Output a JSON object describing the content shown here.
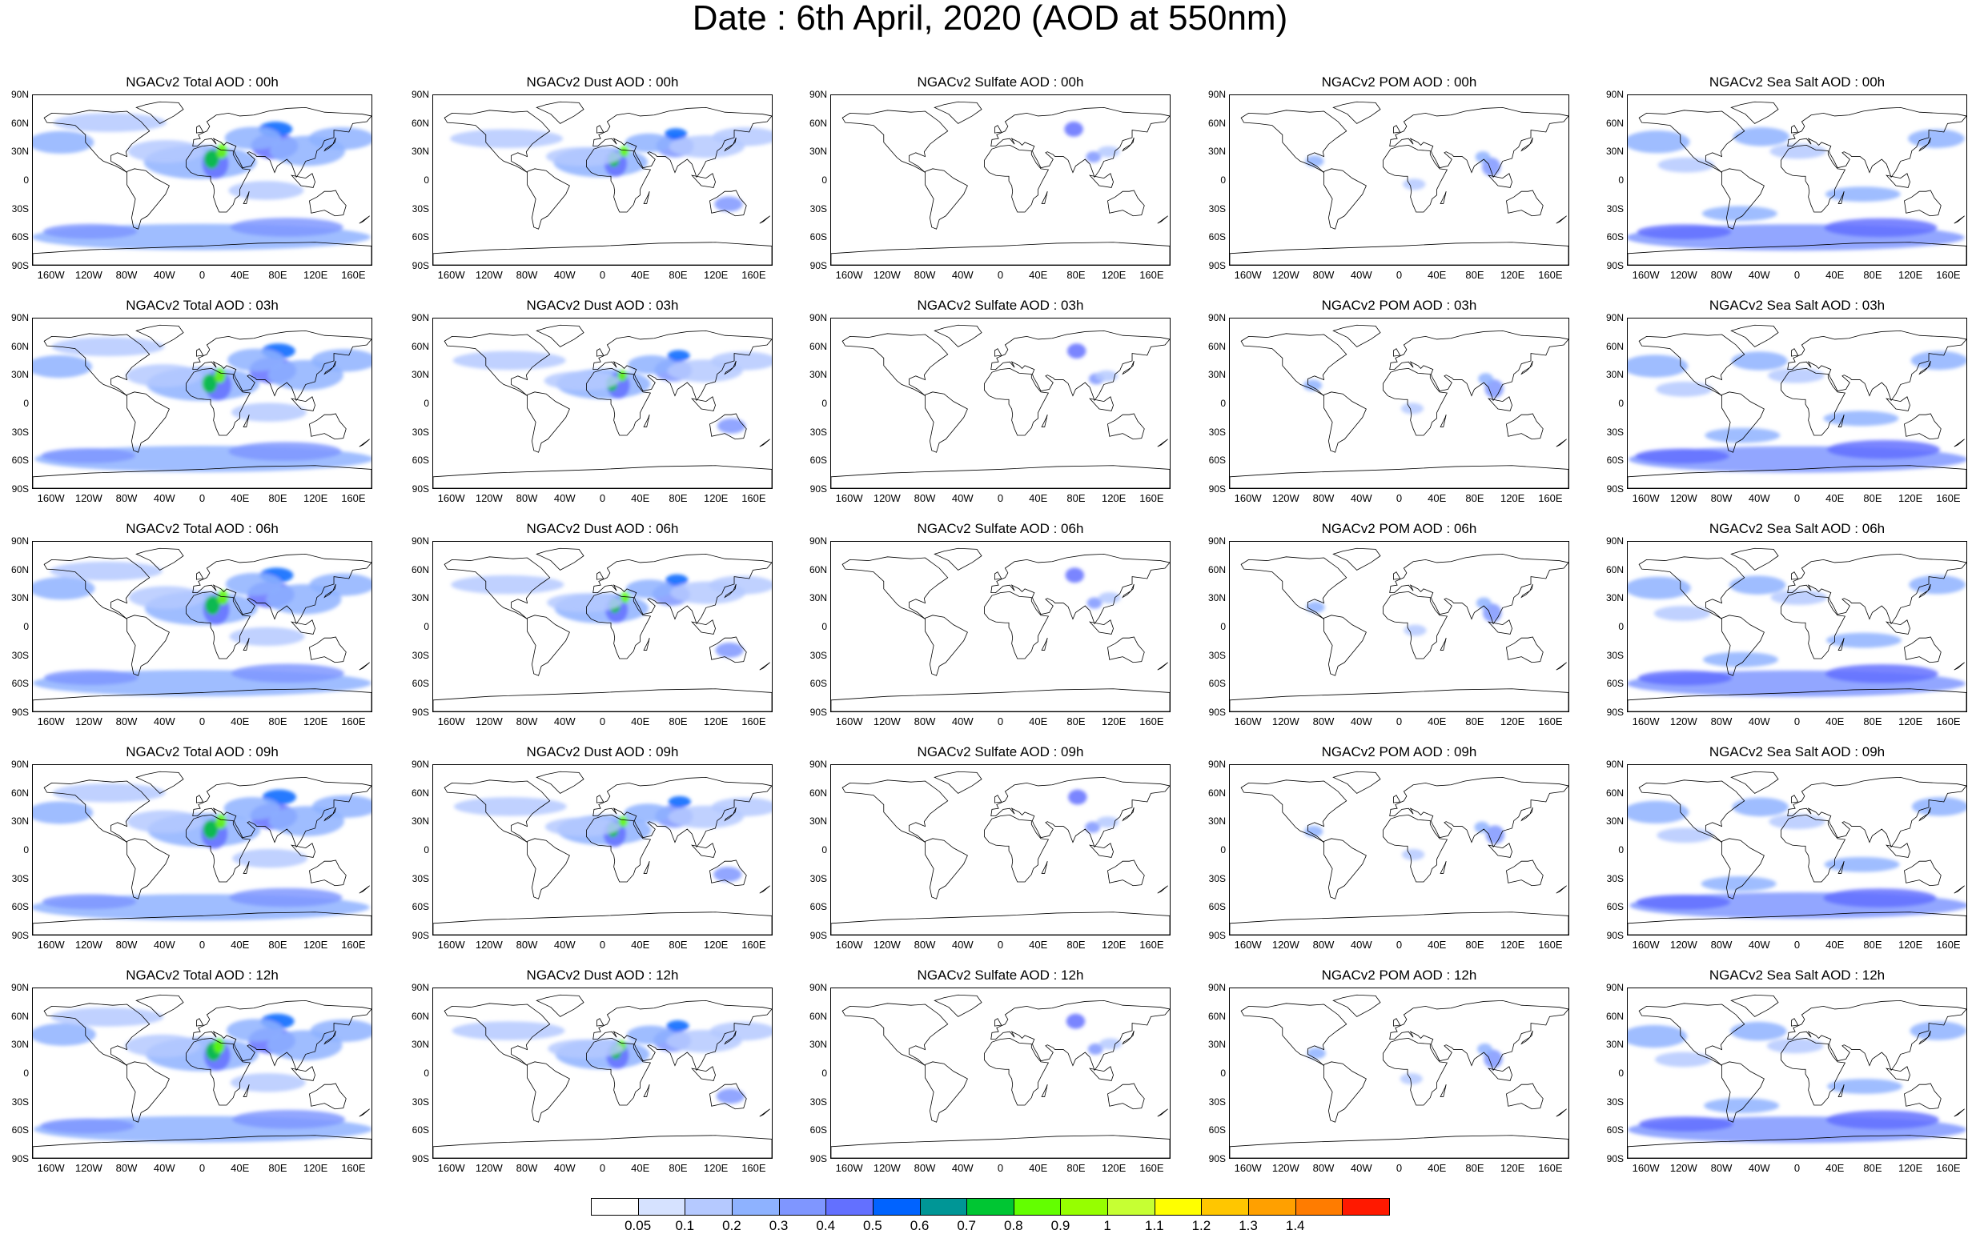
{
  "title": "Date : 6th April, 2020 (AOD at 550nm)",
  "panels": [
    [
      "NGACv2 Total AOD : 00h",
      "NGACv2 Dust AOD : 00h",
      "NGACv2 Sulfate AOD : 00h",
      "NGACv2 POM AOD : 00h",
      "NGACv2 Sea Salt AOD : 00h"
    ],
    [
      "NGACv2 Total AOD : 03h",
      "NGACv2 Dust AOD : 03h",
      "NGACv2 Sulfate AOD : 03h",
      "NGACv2 POM AOD : 03h",
      "NGACv2 Sea Salt AOD : 03h"
    ],
    [
      "NGACv2 Total AOD : 06h",
      "NGACv2 Dust AOD : 06h",
      "NGACv2 Sulfate AOD : 06h",
      "NGACv2 POM AOD : 06h",
      "NGACv2 Sea Salt AOD : 06h"
    ],
    [
      "NGACv2 Total AOD : 09h",
      "NGACv2 Dust AOD : 09h",
      "NGACv2 Sulfate AOD : 09h",
      "NGACv2 POM AOD : 09h",
      "NGACv2 Sea Salt  AOD : 09h"
    ],
    [
      "NGACv2 Total AOD  : 12h",
      "NGACv2 Dust AOD : 12h",
      "NGACv2 Sulfate AOD : 12h",
      "NGACv2 POM  AOD : 12h",
      "NGACv2 Sea Salt  AOD : 12h"
    ]
  ],
  "lat_ticks": [
    "90N",
    "60N",
    "30N",
    "0",
    "30S",
    "60S",
    "90S"
  ],
  "lon_ticks": [
    "160W",
    "120W",
    "80W",
    "40W",
    "0",
    "40E",
    "80E",
    "120E",
    "160E"
  ],
  "colorbar": {
    "levels": [
      "0.05",
      "0.1",
      "0.2",
      "0.3",
      "0.4",
      "0.5",
      "0.6",
      "0.7",
      "0.8",
      "0.9",
      "1",
      "1.1",
      "1.2",
      "1.3",
      "1.4"
    ],
    "colors": [
      "#ffffff",
      "#d6e2ff",
      "#b5c9ff",
      "#8eb2ff",
      "#7f96ff",
      "#6370ff",
      "#0063ff",
      "#009696",
      "#00c633",
      "#63ff00",
      "#96ff00",
      "#c6ff33",
      "#ffff00",
      "#ffc600",
      "#ffa000",
      "#ff7c00",
      "#ff1900"
    ]
  },
  "intensity": {
    "total": 1.0,
    "dust": 0.8,
    "sulfate": 0.12,
    "pom": 0.14,
    "seasalt": 0.55
  }
}
